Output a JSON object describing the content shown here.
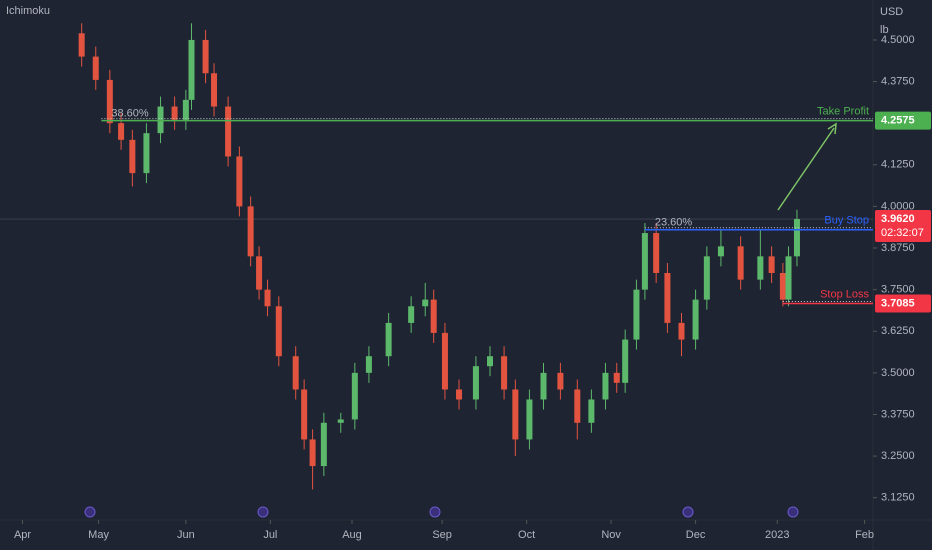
{
  "chart_data": {
    "type": "candlestick",
    "indicator": "Ichimoku",
    "currency": "USD",
    "unit": "lb",
    "x": [
      21,
      26,
      31,
      35,
      39,
      44,
      49,
      54,
      58,
      60,
      65,
      68,
      73,
      77,
      81,
      84,
      87,
      91,
      97,
      100,
      103,
      107,
      113,
      118,
      123,
      130,
      138,
      143,
      146,
      150,
      155,
      161,
      166,
      171,
      175,
      180,
      185,
      191,
      197,
      202,
      207,
      211,
      214,
      218,
      221,
      225,
      229,
      234,
      239,
      243,
      248,
      255,
      262,
      266,
      270,
      272,
      275
    ],
    "open": [
      4.52,
      4.45,
      4.38,
      4.25,
      4.2,
      4.1,
      4.22,
      4.3,
      4.26,
      4.32,
      4.5,
      4.4,
      4.3,
      4.15,
      4.0,
      3.85,
      3.75,
      3.7,
      3.55,
      3.45,
      3.3,
      3.22,
      3.35,
      3.36,
      3.5,
      3.55,
      3.65,
      3.7,
      3.72,
      3.62,
      3.45,
      3.42,
      3.52,
      3.55,
      3.45,
      3.3,
      3.42,
      3.5,
      3.45,
      3.35,
      3.42,
      3.5,
      3.47,
      3.6,
      3.75,
      3.92,
      3.8,
      3.65,
      3.6,
      3.72,
      3.85,
      3.88,
      3.78,
      3.85,
      3.8,
      3.72,
      3.85
    ],
    "high": [
      4.55,
      4.48,
      4.41,
      4.28,
      4.23,
      4.25,
      4.33,
      4.33,
      4.35,
      4.55,
      4.53,
      4.43,
      4.33,
      4.18,
      4.03,
      3.88,
      3.78,
      3.73,
      3.58,
      3.48,
      3.33,
      3.38,
      3.38,
      3.53,
      3.58,
      3.68,
      3.73,
      3.77,
      3.75,
      3.65,
      3.48,
      3.55,
      3.58,
      3.58,
      3.48,
      3.45,
      3.53,
      3.53,
      3.48,
      3.45,
      3.53,
      3.53,
      3.63,
      3.78,
      3.95,
      3.95,
      3.83,
      3.68,
      3.75,
      3.88,
      3.93,
      3.91,
      3.93,
      3.88,
      3.83,
      3.88,
      3.99
    ],
    "low": [
      4.42,
      4.35,
      4.22,
      4.17,
      4.06,
      4.07,
      4.19,
      4.23,
      4.23,
      4.29,
      4.37,
      4.27,
      4.12,
      3.97,
      3.82,
      3.72,
      3.67,
      3.52,
      3.42,
      3.27,
      3.15,
      3.19,
      3.32,
      3.33,
      3.47,
      3.52,
      3.62,
      3.67,
      3.59,
      3.42,
      3.39,
      3.39,
      3.49,
      3.42,
      3.25,
      3.27,
      3.39,
      3.42,
      3.3,
      3.32,
      3.39,
      3.44,
      3.44,
      3.57,
      3.72,
      3.77,
      3.62,
      3.55,
      3.57,
      3.69,
      3.82,
      3.75,
      3.75,
      3.77,
      3.7,
      3.7,
      3.82
    ],
    "close": [
      4.45,
      4.38,
      4.25,
      4.2,
      4.1,
      4.22,
      4.3,
      4.26,
      4.32,
      4.5,
      4.4,
      4.3,
      4.15,
      4.0,
      3.85,
      3.75,
      3.7,
      3.55,
      3.45,
      3.3,
      3.22,
      3.35,
      3.36,
      3.5,
      3.55,
      3.65,
      3.7,
      3.72,
      3.62,
      3.45,
      3.42,
      3.52,
      3.55,
      3.45,
      3.3,
      3.42,
      3.5,
      3.45,
      3.35,
      3.42,
      3.5,
      3.47,
      3.6,
      3.75,
      3.92,
      3.8,
      3.65,
      3.6,
      3.72,
      3.85,
      3.88,
      3.78,
      3.85,
      3.8,
      3.72,
      3.85,
      3.962
    ],
    "up_color": "#5cb86a",
    "down_color": "#e2543f",
    "xlim": [
      -8,
      302
    ],
    "xticks": [
      {
        "value": 0,
        "label": "Apr"
      },
      {
        "value": 27,
        "label": "May"
      },
      {
        "value": 58,
        "label": "Jun"
      },
      {
        "value": 88,
        "label": "Jul"
      },
      {
        "value": 117,
        "label": "Aug"
      },
      {
        "value": 149,
        "label": "Sep"
      },
      {
        "value": 179,
        "label": "Oct"
      },
      {
        "value": 209,
        "label": "Nov"
      },
      {
        "value": 239,
        "label": "Dec"
      },
      {
        "value": 268,
        "label": "2023"
      },
      {
        "value": 299,
        "label": "Feb"
      }
    ],
    "ylim": [
      3.058,
      4.62
    ],
    "yticks": [
      {
        "value": 3.125,
        "label": "3.1250"
      },
      {
        "value": 3.25,
        "label": "3.2500"
      },
      {
        "value": 3.375,
        "label": "3.3750"
      },
      {
        "value": 3.5,
        "label": "3.5000"
      },
      {
        "value": 3.625,
        "label": "3.6250"
      },
      {
        "value": 3.75,
        "label": "3.7500"
      },
      {
        "value": 3.875,
        "label": "3.8750"
      },
      {
        "value": 4.0,
        "label": "4.0000"
      },
      {
        "value": 4.125,
        "label": "4.1250"
      },
      {
        "value": 4.375,
        "label": "4.3750"
      },
      {
        "value": 4.5,
        "label": "4.5000"
      }
    ],
    "levels": [
      {
        "name": "Take Profit",
        "value": 4.2575,
        "start": 28,
        "color": "#4caf50",
        "fib": "38.60%",
        "axis_badge": true
      },
      {
        "name": "Buy Stop",
        "value": 3.93,
        "start": 221,
        "color": "#2962ff",
        "fib": "23.60%",
        "axis_badge": false
      },
      {
        "name": "Stop Loss",
        "value": 3.7085,
        "start": 270,
        "color": "#f23645",
        "axis_badge": true
      }
    ],
    "last_price": {
      "value": 3.962,
      "label": "3.9620",
      "countdown": "02:32:07",
      "color": "#f23645"
    }
  }
}
